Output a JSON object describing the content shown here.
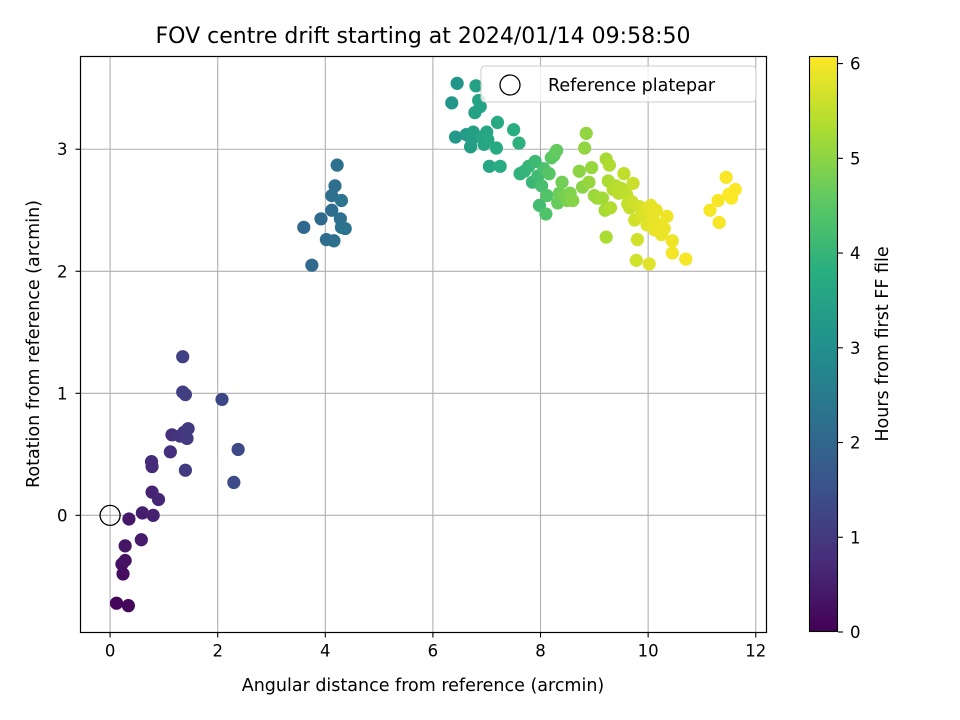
{
  "chart_data": {
    "type": "scatter",
    "title": "FOV centre drift starting at 2024/01/14 09:58:50",
    "xlabel": "Angular distance from reference (arcmin)",
    "ylabel": "Rotation from reference (arcmin)",
    "xlim": [
      -0.55,
      12.2
    ],
    "ylim": [
      -0.96,
      3.76
    ],
    "xticks": [
      "0",
      "2",
      "4",
      "6",
      "8",
      "10",
      "12"
    ],
    "yticks": [
      "0",
      "1",
      "2",
      "3"
    ],
    "grid": true,
    "legend": {
      "position": "top-right",
      "entries": [
        "Reference platepar"
      ]
    },
    "reference_point": {
      "x": 0,
      "y": 0,
      "marker": "hollow-circle"
    },
    "colorbar": {
      "label": "Hours from first FF file",
      "colormap": "viridis",
      "range": [
        0,
        6.08
      ],
      "ticks": [
        "0",
        "1",
        "2",
        "3",
        "4",
        "5",
        "6"
      ]
    },
    "points": [
      {
        "x": 0.12,
        "y": -0.72,
        "c": 0.05
      },
      {
        "x": 0.34,
        "y": -0.74,
        "c": 0.1
      },
      {
        "x": 0.24,
        "y": -0.48,
        "c": 0.2
      },
      {
        "x": 0.22,
        "y": -0.4,
        "c": 0.25
      },
      {
        "x": 0.28,
        "y": -0.37,
        "c": 0.3
      },
      {
        "x": 0.28,
        "y": -0.25,
        "c": 0.35
      },
      {
        "x": 0.35,
        "y": -0.03,
        "c": 0.4
      },
      {
        "x": 0.58,
        "y": -0.2,
        "c": 0.45
      },
      {
        "x": 0.6,
        "y": 0.02,
        "c": 0.5
      },
      {
        "x": 0.8,
        "y": 0.0,
        "c": 0.55
      },
      {
        "x": 0.78,
        "y": 0.19,
        "c": 0.6
      },
      {
        "x": 0.9,
        "y": 0.13,
        "c": 0.65
      },
      {
        "x": 0.78,
        "y": 0.4,
        "c": 0.7
      },
      {
        "x": 0.77,
        "y": 0.44,
        "c": 0.72
      },
      {
        "x": 1.12,
        "y": 0.52,
        "c": 0.8
      },
      {
        "x": 1.15,
        "y": 0.66,
        "c": 0.85
      },
      {
        "x": 1.3,
        "y": 0.65,
        "c": 0.9
      },
      {
        "x": 1.37,
        "y": 0.68,
        "c": 0.95
      },
      {
        "x": 1.45,
        "y": 0.71,
        "c": 1.0
      },
      {
        "x": 1.43,
        "y": 0.63,
        "c": 1.0
      },
      {
        "x": 1.4,
        "y": 0.37,
        "c": 1.05
      },
      {
        "x": 1.35,
        "y": 1.01,
        "c": 1.1
      },
      {
        "x": 1.4,
        "y": 0.99,
        "c": 1.1
      },
      {
        "x": 1.35,
        "y": 1.3,
        "c": 1.15
      },
      {
        "x": 2.08,
        "y": 0.95,
        "c": 1.3
      },
      {
        "x": 2.38,
        "y": 0.54,
        "c": 1.35
      },
      {
        "x": 2.3,
        "y": 0.27,
        "c": 1.4
      },
      {
        "x": 3.6,
        "y": 2.36,
        "c": 2.05
      },
      {
        "x": 3.75,
        "y": 2.05,
        "c": 2.1
      },
      {
        "x": 3.92,
        "y": 2.43,
        "c": 2.1
      },
      {
        "x": 4.02,
        "y": 2.26,
        "c": 2.15
      },
      {
        "x": 4.12,
        "y": 2.5,
        "c": 2.15
      },
      {
        "x": 4.12,
        "y": 2.62,
        "c": 2.2
      },
      {
        "x": 4.18,
        "y": 2.7,
        "c": 2.2
      },
      {
        "x": 4.16,
        "y": 2.25,
        "c": 2.2
      },
      {
        "x": 4.22,
        "y": 2.87,
        "c": 2.25
      },
      {
        "x": 4.28,
        "y": 2.43,
        "c": 2.25
      },
      {
        "x": 4.3,
        "y": 2.36,
        "c": 2.3
      },
      {
        "x": 4.3,
        "y": 2.58,
        "c": 2.3
      },
      {
        "x": 4.37,
        "y": 2.35,
        "c": 2.3
      },
      {
        "x": 6.35,
        "y": 3.38,
        "c": 3.2
      },
      {
        "x": 6.45,
        "y": 3.54,
        "c": 3.2
      },
      {
        "x": 6.42,
        "y": 3.1,
        "c": 3.25
      },
      {
        "x": 6.62,
        "y": 3.12,
        "c": 3.3
      },
      {
        "x": 6.7,
        "y": 3.02,
        "c": 3.35
      },
      {
        "x": 6.72,
        "y": 3.08,
        "c": 3.4
      },
      {
        "x": 6.75,
        "y": 3.14,
        "c": 3.4
      },
      {
        "x": 6.78,
        "y": 3.3,
        "c": 3.45
      },
      {
        "x": 6.8,
        "y": 3.52,
        "c": 3.45
      },
      {
        "x": 6.85,
        "y": 3.4,
        "c": 3.5
      },
      {
        "x": 6.88,
        "y": 3.35,
        "c": 3.5
      },
      {
        "x": 6.92,
        "y": 3.1,
        "c": 3.55
      },
      {
        "x": 6.95,
        "y": 3.04,
        "c": 3.55
      },
      {
        "x": 7.0,
        "y": 3.14,
        "c": 3.6
      },
      {
        "x": 7.05,
        "y": 2.86,
        "c": 3.6
      },
      {
        "x": 7.02,
        "y": 3.08,
        "c": 3.65
      },
      {
        "x": 7.18,
        "y": 3.01,
        "c": 3.7
      },
      {
        "x": 7.2,
        "y": 3.22,
        "c": 3.7
      },
      {
        "x": 7.25,
        "y": 2.86,
        "c": 3.75
      },
      {
        "x": 7.5,
        "y": 3.16,
        "c": 3.8
      },
      {
        "x": 7.6,
        "y": 3.05,
        "c": 3.85
      },
      {
        "x": 7.62,
        "y": 2.8,
        "c": 3.9
      },
      {
        "x": 7.7,
        "y": 2.82,
        "c": 3.95
      },
      {
        "x": 7.78,
        "y": 2.86,
        "c": 4.0
      },
      {
        "x": 7.85,
        "y": 2.73,
        "c": 4.05
      },
      {
        "x": 7.9,
        "y": 2.9,
        "c": 4.1
      },
      {
        "x": 7.95,
        "y": 2.78,
        "c": 4.15
      },
      {
        "x": 7.98,
        "y": 2.54,
        "c": 4.2
      },
      {
        "x": 8.02,
        "y": 2.7,
        "c": 4.25
      },
      {
        "x": 8.06,
        "y": 2.84,
        "c": 4.3
      },
      {
        "x": 8.1,
        "y": 2.47,
        "c": 4.35
      },
      {
        "x": 8.12,
        "y": 2.62,
        "c": 4.4
      },
      {
        "x": 8.16,
        "y": 2.8,
        "c": 4.45
      },
      {
        "x": 8.2,
        "y": 2.93,
        "c": 4.5
      },
      {
        "x": 8.25,
        "y": 2.95,
        "c": 4.55
      },
      {
        "x": 8.3,
        "y": 2.99,
        "c": 4.6
      },
      {
        "x": 8.32,
        "y": 2.56,
        "c": 4.65
      },
      {
        "x": 8.35,
        "y": 2.64,
        "c": 4.7
      },
      {
        "x": 8.4,
        "y": 2.73,
        "c": 4.75
      },
      {
        "x": 8.45,
        "y": 2.62,
        "c": 4.8
      },
      {
        "x": 8.5,
        "y": 2.58,
        "c": 4.85
      },
      {
        "x": 8.55,
        "y": 2.64,
        "c": 4.9
      },
      {
        "x": 8.6,
        "y": 2.58,
        "c": 4.95
      },
      {
        "x": 8.72,
        "y": 2.82,
        "c": 5.0
      },
      {
        "x": 8.78,
        "y": 2.69,
        "c": 5.0
      },
      {
        "x": 8.82,
        "y": 3.01,
        "c": 5.05
      },
      {
        "x": 8.85,
        "y": 3.13,
        "c": 5.05
      },
      {
        "x": 8.9,
        "y": 2.73,
        "c": 5.1
      },
      {
        "x": 8.95,
        "y": 2.85,
        "c": 5.1
      },
      {
        "x": 9.0,
        "y": 2.62,
        "c": 5.15
      },
      {
        "x": 9.05,
        "y": 2.6,
        "c": 5.15
      },
      {
        "x": 9.1,
        "y": 2.6,
        "c": 5.2
      },
      {
        "x": 9.15,
        "y": 2.6,
        "c": 5.2
      },
      {
        "x": 9.2,
        "y": 2.5,
        "c": 5.25
      },
      {
        "x": 9.22,
        "y": 2.92,
        "c": 5.25
      },
      {
        "x": 9.22,
        "y": 2.28,
        "c": 5.3
      },
      {
        "x": 9.26,
        "y": 2.74,
        "c": 5.3
      },
      {
        "x": 9.28,
        "y": 2.87,
        "c": 5.35
      },
      {
        "x": 9.3,
        "y": 2.52,
        "c": 5.35
      },
      {
        "x": 9.35,
        "y": 2.67,
        "c": 5.4
      },
      {
        "x": 9.4,
        "y": 2.7,
        "c": 5.4
      },
      {
        "x": 9.45,
        "y": 2.64,
        "c": 5.45
      },
      {
        "x": 9.5,
        "y": 2.68,
        "c": 5.45
      },
      {
        "x": 9.55,
        "y": 2.8,
        "c": 5.5
      },
      {
        "x": 9.6,
        "y": 2.63,
        "c": 5.5
      },
      {
        "x": 9.62,
        "y": 2.55,
        "c": 5.55
      },
      {
        "x": 9.66,
        "y": 2.52,
        "c": 5.55
      },
      {
        "x": 9.7,
        "y": 2.57,
        "c": 5.6
      },
      {
        "x": 9.72,
        "y": 2.72,
        "c": 5.6
      },
      {
        "x": 9.75,
        "y": 2.42,
        "c": 5.65
      },
      {
        "x": 9.78,
        "y": 2.09,
        "c": 5.65
      },
      {
        "x": 9.8,
        "y": 2.26,
        "c": 5.65
      },
      {
        "x": 9.84,
        "y": 2.53,
        "c": 5.7
      },
      {
        "x": 9.88,
        "y": 2.47,
        "c": 5.7
      },
      {
        "x": 9.9,
        "y": 2.45,
        "c": 5.75
      },
      {
        "x": 9.95,
        "y": 2.5,
        "c": 5.75
      },
      {
        "x": 9.98,
        "y": 2.38,
        "c": 5.8
      },
      {
        "x": 10.0,
        "y": 2.52,
        "c": 5.8
      },
      {
        "x": 10.02,
        "y": 2.06,
        "c": 5.8
      },
      {
        "x": 10.05,
        "y": 2.54,
        "c": 5.85
      },
      {
        "x": 10.08,
        "y": 2.45,
        "c": 5.85
      },
      {
        "x": 10.1,
        "y": 2.42,
        "c": 5.85
      },
      {
        "x": 10.12,
        "y": 2.34,
        "c": 5.9
      },
      {
        "x": 10.15,
        "y": 2.5,
        "c": 5.9
      },
      {
        "x": 10.2,
        "y": 2.38,
        "c": 5.9
      },
      {
        "x": 10.25,
        "y": 2.3,
        "c": 5.92
      },
      {
        "x": 10.3,
        "y": 2.35,
        "c": 5.92
      },
      {
        "x": 10.35,
        "y": 2.45,
        "c": 5.95
      },
      {
        "x": 10.45,
        "y": 2.25,
        "c": 5.95
      },
      {
        "x": 10.45,
        "y": 2.15,
        "c": 5.98
      },
      {
        "x": 10.7,
        "y": 2.1,
        "c": 6.0
      },
      {
        "x": 11.15,
        "y": 2.5,
        "c": 6.0
      },
      {
        "x": 11.3,
        "y": 2.58,
        "c": 6.02
      },
      {
        "x": 11.32,
        "y": 2.4,
        "c": 6.02
      },
      {
        "x": 11.45,
        "y": 2.77,
        "c": 6.04
      },
      {
        "x": 11.5,
        "y": 2.63,
        "c": 6.05
      },
      {
        "x": 11.55,
        "y": 2.6,
        "c": 6.05
      },
      {
        "x": 11.62,
        "y": 2.67,
        "c": 6.06
      }
    ]
  }
}
